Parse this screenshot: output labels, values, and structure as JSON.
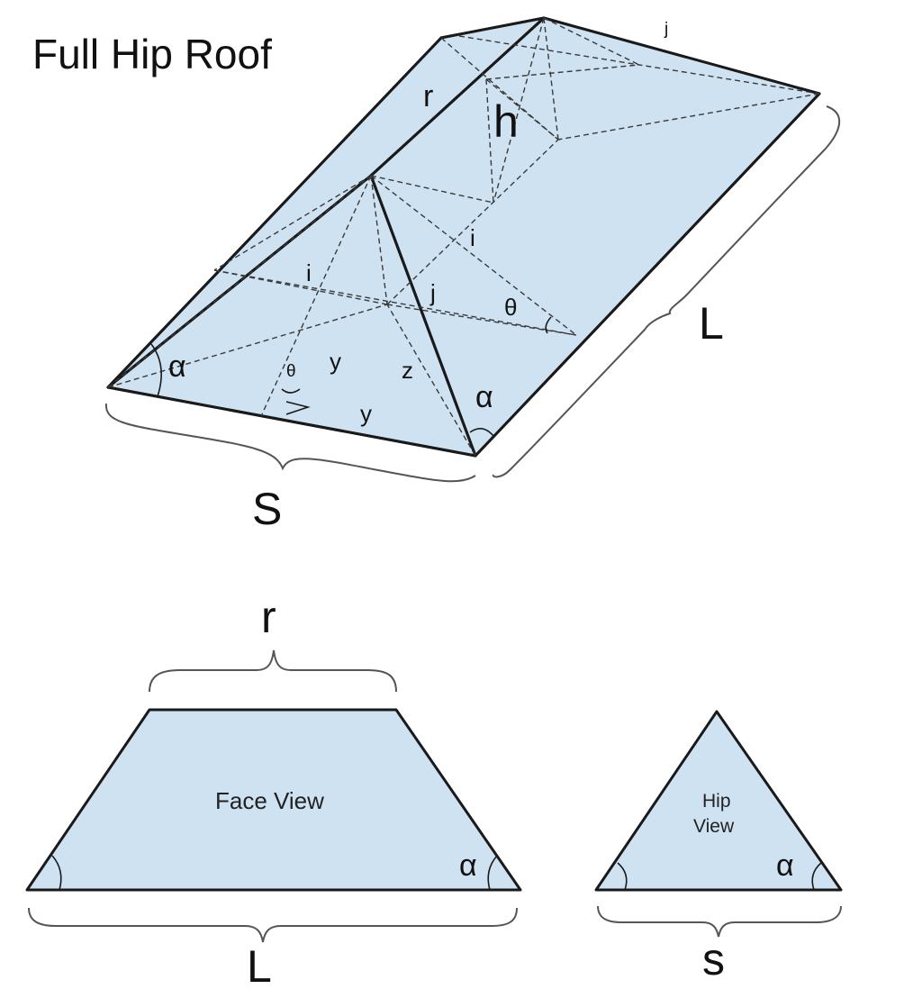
{
  "title": "Full Hip Roof",
  "roof_labels": {
    "r": "r",
    "h": "h",
    "j_top": "j",
    "i_upper": "i",
    "i_left": "i",
    "j_hip": "j",
    "theta_right": "θ",
    "theta_left": "θ",
    "y_upper": "y",
    "y_lower": "y",
    "z": "z",
    "alpha_left": "α",
    "alpha_right": "α",
    "L": "L",
    "S": "S"
  },
  "face_view": {
    "caption": "Face View",
    "r": "r",
    "alpha": "α",
    "L": "L"
  },
  "hip_view": {
    "caption_line1": "Hip",
    "caption_line2": "View",
    "alpha": "α",
    "s": "s"
  }
}
